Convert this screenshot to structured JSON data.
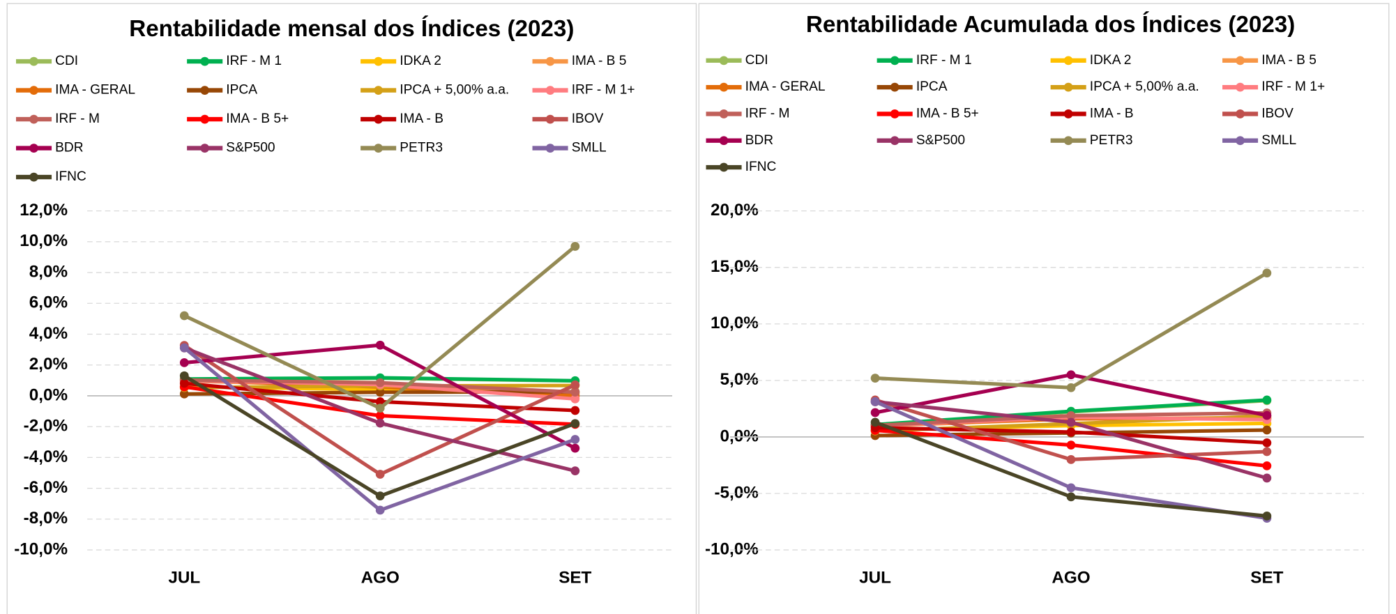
{
  "chart_data": [
    {
      "type": "line",
      "title": "Rentabilidade mensal dos Índices (2023)",
      "categories": [
        "JUL",
        "AGO",
        "SET"
      ],
      "ylim": [
        -10,
        12
      ],
      "yticks": [
        {
          "value": -10,
          "label": "-10,0%"
        },
        {
          "value": -8,
          "label": "-8,0%"
        },
        {
          "value": -6,
          "label": "-6,0%"
        },
        {
          "value": -4,
          "label": "-4,0%"
        },
        {
          "value": -2,
          "label": "-2,0%"
        },
        {
          "value": 0,
          "label": "0,0%"
        },
        {
          "value": 2,
          "label": "2,0%"
        },
        {
          "value": 4,
          "label": "4,0%"
        },
        {
          "value": 6,
          "label": "6,0%"
        },
        {
          "value": 8,
          "label": "8,0%"
        },
        {
          "value": 10,
          "label": "10,0%"
        },
        {
          "value": 12,
          "label": "12,0%"
        }
      ],
      "grid": true,
      "series": [
        {
          "name": "CDI",
          "color": "#9bbb59",
          "values": [
            1.07,
            1.14,
            0.97
          ]
        },
        {
          "name": "IRF - M 1",
          "color": "#00b050",
          "values": [
            1.09,
            1.17,
            0.98
          ]
        },
        {
          "name": "IDKA 2",
          "color": "#ffc000",
          "values": [
            0.6,
            0.4,
            0.2
          ]
        },
        {
          "name": "IMA - B 5",
          "color": "#f79646",
          "values": [
            0.97,
            0.61,
            0.12
          ]
        },
        {
          "name": "IMA - GERAL",
          "color": "#e36c09",
          "values": [
            1.04,
            0.57,
            0.0
          ]
        },
        {
          "name": "IPCA",
          "color": "#974706",
          "values": [
            0.12,
            0.23,
            0.26
          ]
        },
        {
          "name": "IPCA + 5,00% a.a.",
          "color": "#d4a017",
          "values": [
            0.53,
            0.64,
            0.67
          ]
        },
        {
          "name": "IRF - M 1+",
          "color": "#ff7c80",
          "values": [
            0.99,
            0.73,
            -0.2
          ]
        },
        {
          "name": "IRF - M",
          "color": "#c0605a",
          "values": [
            1.02,
            0.85,
            0.24
          ]
        },
        {
          "name": "IMA - B 5+",
          "color": "#ff0000",
          "values": [
            0.58,
            -1.29,
            -1.85
          ]
        },
        {
          "name": "IMA - B",
          "color": "#c00000",
          "values": [
            0.81,
            -0.38,
            -0.95
          ]
        },
        {
          "name": "IBOV",
          "color": "#c0504d",
          "values": [
            3.27,
            -5.09,
            0.71
          ]
        },
        {
          "name": "BDR",
          "color": "#a50050",
          "values": [
            2.15,
            3.29,
            -3.4
          ]
        },
        {
          "name": "S&P500",
          "color": "#993366",
          "values": [
            3.11,
            -1.77,
            -4.87
          ]
        },
        {
          "name": "PETR3",
          "color": "#948a54",
          "values": [
            5.2,
            -0.8,
            9.7
          ]
        },
        {
          "name": "SMLL",
          "color": "#8064a2",
          "values": [
            3.12,
            -7.42,
            -2.83
          ]
        },
        {
          "name": "IFNC",
          "color": "#4a4526",
          "values": [
            1.3,
            -6.5,
            -1.8
          ]
        }
      ]
    },
    {
      "type": "line",
      "title": "Rentabilidade Acumulada dos Índices (2023)",
      "categories": [
        "JUL",
        "AGO",
        "SET"
      ],
      "ylim": [
        -10,
        20
      ],
      "yticks": [
        {
          "value": -10,
          "label": "-10,0%"
        },
        {
          "value": -5,
          "label": "-5,0%"
        },
        {
          "value": 0,
          "label": "0,0%"
        },
        {
          "value": 5,
          "label": "5,0%"
        },
        {
          "value": 10,
          "label": "10,0%"
        },
        {
          "value": 15,
          "label": "15,0%"
        },
        {
          "value": 20,
          "label": "20,0%"
        }
      ],
      "grid": true,
      "series": [
        {
          "name": "CDI",
          "color": "#9bbb59",
          "values": [
            1.07,
            2.22,
            3.21
          ]
        },
        {
          "name": "IRF - M 1",
          "color": "#00b050",
          "values": [
            1.09,
            2.27,
            3.27
          ]
        },
        {
          "name": "IDKA 2",
          "color": "#ffc000",
          "values": [
            0.6,
            1.0,
            1.2
          ]
        },
        {
          "name": "IMA - B 5",
          "color": "#f79646",
          "values": [
            0.97,
            1.59,
            1.71
          ]
        },
        {
          "name": "IMA - GERAL",
          "color": "#e36c09",
          "values": [
            1.04,
            1.62,
            1.62
          ]
        },
        {
          "name": "IPCA",
          "color": "#974706",
          "values": [
            0.12,
            0.35,
            0.61
          ]
        },
        {
          "name": "IPCA + 5,00% a.a.",
          "color": "#d4a017",
          "values": [
            0.53,
            1.17,
            1.85
          ]
        },
        {
          "name": "IRF - M 1+",
          "color": "#ff7c80",
          "values": [
            0.99,
            1.73,
            1.53
          ]
        },
        {
          "name": "IRF - M",
          "color": "#c0605a",
          "values": [
            1.02,
            1.88,
            2.12
          ]
        },
        {
          "name": "IMA - B 5+",
          "color": "#ff0000",
          "values": [
            0.58,
            -0.72,
            -2.56
          ]
        },
        {
          "name": "IMA - B",
          "color": "#c00000",
          "values": [
            0.81,
            0.43,
            -0.52
          ]
        },
        {
          "name": "IBOV",
          "color": "#c0504d",
          "values": [
            3.27,
            -2.0,
            -1.3
          ]
        },
        {
          "name": "BDR",
          "color": "#a50050",
          "values": [
            2.15,
            5.5,
            1.9
          ]
        },
        {
          "name": "S&P500",
          "color": "#993366",
          "values": [
            3.11,
            1.29,
            -3.64
          ]
        },
        {
          "name": "PETR3",
          "color": "#948a54",
          "values": [
            5.2,
            4.36,
            14.5
          ]
        },
        {
          "name": "SMLL",
          "color": "#8064a2",
          "values": [
            3.12,
            -4.5,
            -7.2
          ]
        },
        {
          "name": "IFNC",
          "color": "#4a4526",
          "values": [
            1.3,
            -5.3,
            -7.0
          ]
        }
      ]
    }
  ]
}
